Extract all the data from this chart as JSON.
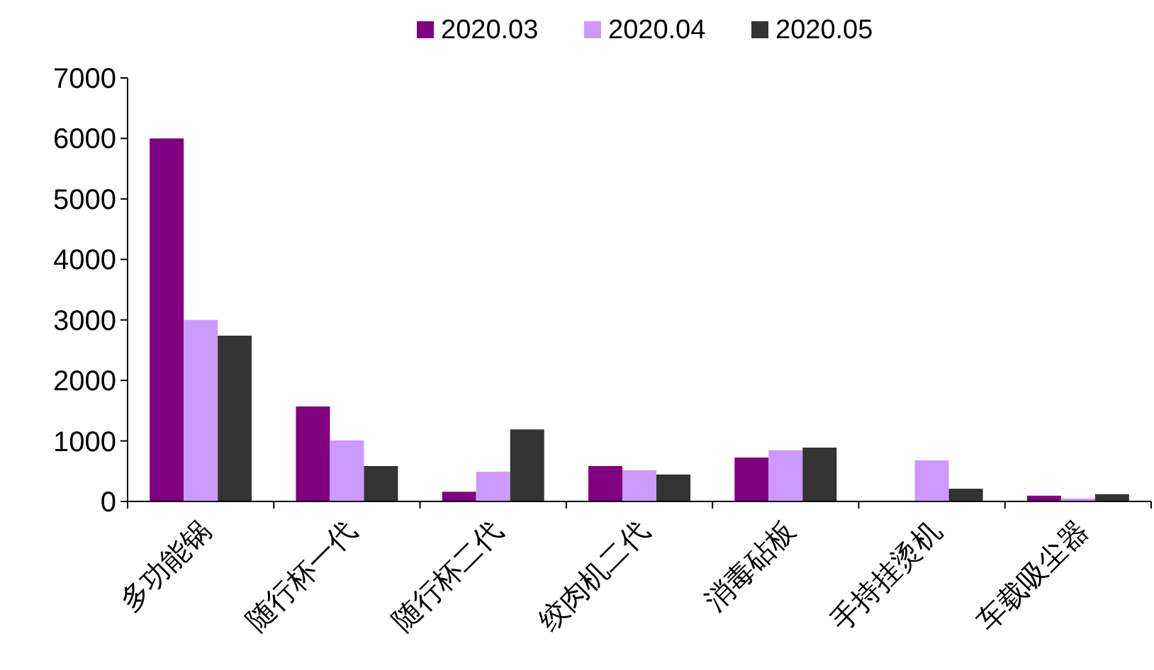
{
  "chart_data": {
    "type": "bar",
    "categories": [
      "多功能锅",
      "随行杯一代",
      "随行杯二代",
      "绞肉机二代",
      "消毒砧板",
      "手持挂烫机",
      "车载吸尘器"
    ],
    "series": [
      {
        "name": "2020.03",
        "color": "#800080",
        "values": [
          6000,
          1570,
          160,
          585,
          725,
          0,
          95
        ]
      },
      {
        "name": "2020.04",
        "color": "#cc99ff",
        "values": [
          3000,
          1010,
          490,
          515,
          845,
          680,
          50
        ]
      },
      {
        "name": "2020.05",
        "color": "#333333",
        "values": [
          2740,
          585,
          1190,
          445,
          890,
          210,
          120
        ]
      }
    ],
    "ylim": [
      0,
      7000
    ],
    "yticks": [
      0,
      1000,
      2000,
      3000,
      4000,
      5000,
      6000,
      7000
    ],
    "legend": "top",
    "grid": false
  }
}
